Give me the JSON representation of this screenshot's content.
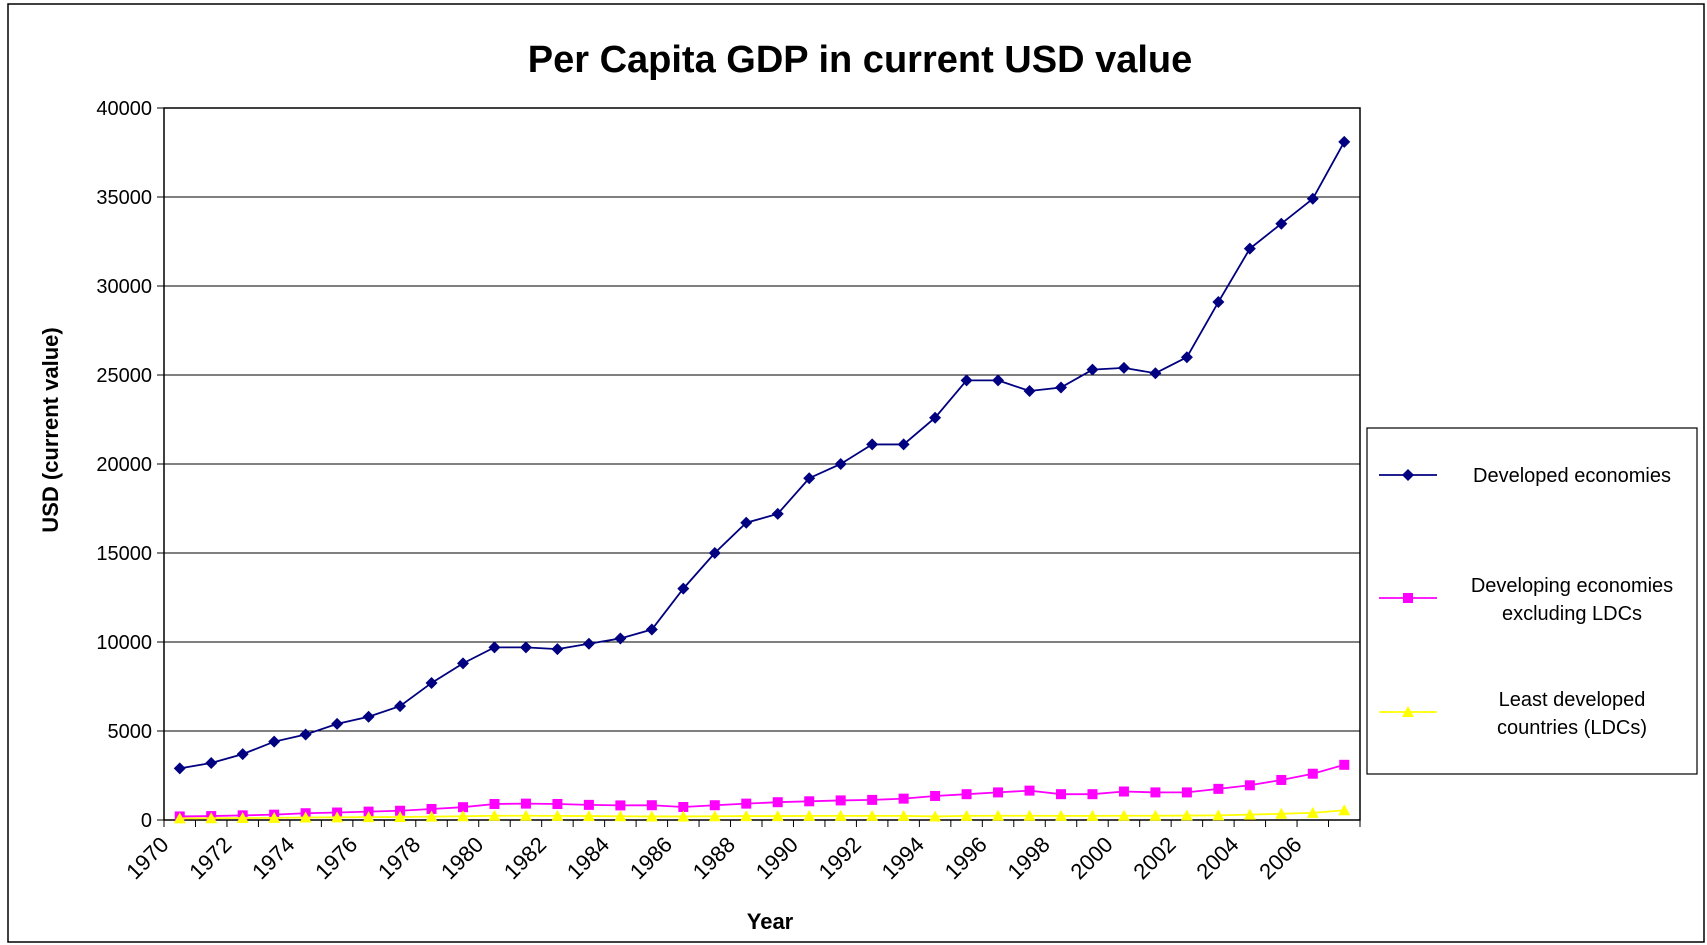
{
  "chart_data": {
    "type": "line",
    "title": "Per Capita GDP in current USD value",
    "xlabel": "Year",
    "ylabel": "USD (current value)",
    "ylim": [
      0,
      40000
    ],
    "yticks": [
      0,
      5000,
      10000,
      15000,
      20000,
      25000,
      30000,
      35000,
      40000
    ],
    "xtick_labels": [
      "1970",
      "1972",
      "1974",
      "1976",
      "1978",
      "1980",
      "1982",
      "1984",
      "1986",
      "1988",
      "1990",
      "1992",
      "1994",
      "1996",
      "1998",
      "2000",
      "2002",
      "2004",
      "2006"
    ],
    "x": [
      1970,
      1971,
      1972,
      1973,
      1974,
      1975,
      1976,
      1977,
      1978,
      1979,
      1980,
      1981,
      1982,
      1983,
      1984,
      1985,
      1986,
      1987,
      1988,
      1989,
      1990,
      1991,
      1992,
      1993,
      1994,
      1995,
      1996,
      1997,
      1998,
      1999,
      2000,
      2001,
      2002,
      2003,
      2004,
      2005,
      2006,
      2007
    ],
    "grid": true,
    "legend_position": "right",
    "series": [
      {
        "name": "Developed economies",
        "color": "#000080",
        "marker": "diamond",
        "values": [
          2900,
          3200,
          3700,
          4400,
          4800,
          5400,
          5800,
          6400,
          7700,
          8800,
          9700,
          9700,
          9600,
          9900,
          10200,
          10700,
          13000,
          15000,
          16700,
          17200,
          19200,
          20000,
          21100,
          21100,
          22600,
          24700,
          24700,
          24100,
          24300,
          25300,
          25400,
          25100,
          26000,
          29100,
          32100,
          33500,
          34900,
          38100
        ]
      },
      {
        "name": "Developing economies excluding LDCs",
        "color": "#FF00FF",
        "marker": "square",
        "values": [
          200,
          220,
          260,
          300,
          380,
          420,
          470,
          520,
          620,
          720,
          900,
          920,
          900,
          850,
          820,
          830,
          730,
          830,
          920,
          1000,
          1050,
          1100,
          1130,
          1200,
          1350,
          1450,
          1550,
          1650,
          1450,
          1450,
          1600,
          1550,
          1550,
          1750,
          1950,
          2250,
          2600,
          3100
        ]
      },
      {
        "name": "Least developed countries (LDCs)",
        "color": "#FFFF00",
        "marker": "triangle",
        "values": [
          90,
          100,
          110,
          120,
          140,
          150,
          160,
          170,
          190,
          210,
          240,
          240,
          230,
          220,
          210,
          200,
          200,
          210,
          220,
          220,
          230,
          230,
          230,
          230,
          200,
          230,
          240,
          240,
          230,
          230,
          240,
          240,
          250,
          260,
          300,
          350,
          400,
          550
        ]
      }
    ],
    "legend_labels": [
      [
        "Developed economies"
      ],
      [
        "Developing economies",
        "excluding LDCs"
      ],
      [
        "Least developed",
        "countries (LDCs)"
      ]
    ]
  }
}
